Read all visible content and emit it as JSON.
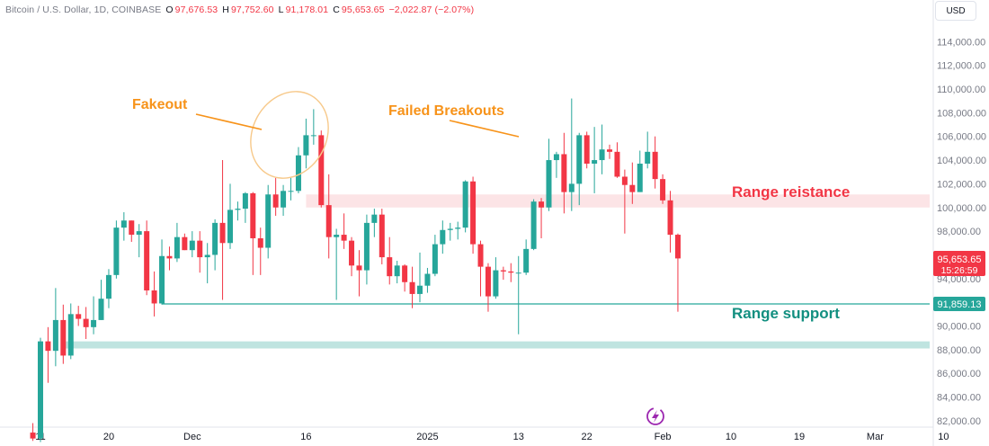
{
  "header": {
    "symbol": "Bitcoin / U.S. Dollar, 1D, COINBASE",
    "o_label": "O",
    "o_value": "97,676.53",
    "h_label": "H",
    "h_value": "97,752.60",
    "l_label": "L",
    "l_value": "91,178.01",
    "c_label": "C",
    "c_value": "95,653.65",
    "change": "−2,022.87 (−2.07%)"
  },
  "currency_button": "USD",
  "price_tag": {
    "price": "95,653.65",
    "countdown": "15:26:59"
  },
  "support_tag": "91,859.13",
  "annotations": {
    "fakeout": "Fakeout",
    "failed_breakouts": "Failed Breakouts",
    "range_resistance": "Range reistance",
    "range_support": "Range support"
  },
  "colors": {
    "up": "#26a69a",
    "down": "#f23645",
    "orange": "#f7931a",
    "resistance_zone": "#fce4e6",
    "support_zone": "#bfe4e0",
    "support_line": "#26a69a"
  },
  "chart_data": {
    "type": "candlestick",
    "y_axis": {
      "min": 80500,
      "max": 115000,
      "ticks": [
        82000,
        84000,
        86000,
        88000,
        90000,
        92000,
        94000,
        96000,
        98000,
        100000,
        102000,
        104000,
        106000,
        108000,
        110000,
        112000,
        114000
      ],
      "tick_labels": [
        "82,000.00",
        "84,000.00",
        "86,000.00",
        "88,000.00",
        "90,000.00",
        "92,000.00",
        "94,000.00",
        "96,000.00",
        "98,000.00",
        "100,000.00",
        "102,000.00",
        "104,000.00",
        "106,000.00",
        "108,000.00",
        "110,000.00",
        "112,000.00",
        "114,000.00"
      ]
    },
    "x_axis": {
      "ticks": [
        {
          "label": "11",
          "date": "2024-11-11"
        },
        {
          "label": "20",
          "date": "2024-11-20"
        },
        {
          "label": "Dec",
          "date": "2024-12-01"
        },
        {
          "label": "16",
          "date": "2024-12-16"
        },
        {
          "label": "2025",
          "date": "2025-01-01"
        },
        {
          "label": "13",
          "date": "2025-01-13"
        },
        {
          "label": "22",
          "date": "2025-01-22"
        },
        {
          "label": "Feb",
          "date": "2025-02-01"
        },
        {
          "label": "10",
          "date": "2025-02-10"
        },
        {
          "label": "19",
          "date": "2025-02-19"
        },
        {
          "label": "Mar",
          "date": "2025-03-01"
        },
        {
          "label": "10",
          "date": "2025-03-10"
        }
      ]
    },
    "candles": [
      {
        "date": "2024-11-10",
        "o": 81000,
        "h": 81800,
        "l": 80300,
        "c": 80500
      },
      {
        "date": "2024-11-11",
        "o": 80500,
        "h": 89000,
        "l": 80200,
        "c": 88700
      },
      {
        "date": "2024-11-12",
        "o": 88700,
        "h": 89900,
        "l": 85200,
        "c": 87900
      },
      {
        "date": "2024-11-13",
        "o": 87900,
        "h": 93200,
        "l": 86600,
        "c": 90500
      },
      {
        "date": "2024-11-14",
        "o": 90500,
        "h": 91800,
        "l": 86800,
        "c": 87500
      },
      {
        "date": "2024-11-15",
        "o": 87500,
        "h": 91900,
        "l": 87200,
        "c": 91000
      },
      {
        "date": "2024-11-16",
        "o": 91000,
        "h": 91700,
        "l": 90000,
        "c": 90600
      },
      {
        "date": "2024-11-17",
        "o": 90600,
        "h": 91600,
        "l": 88900,
        "c": 89900
      },
      {
        "date": "2024-11-18",
        "o": 89900,
        "h": 92500,
        "l": 89300,
        "c": 90500
      },
      {
        "date": "2024-11-19",
        "o": 90500,
        "h": 93900,
        "l": 90500,
        "c": 92300
      },
      {
        "date": "2024-11-20",
        "o": 92300,
        "h": 94800,
        "l": 91500,
        "c": 94300
      },
      {
        "date": "2024-11-21",
        "o": 94300,
        "h": 98900,
        "l": 94000,
        "c": 98300
      },
      {
        "date": "2024-11-22",
        "o": 98300,
        "h": 99600,
        "l": 97200,
        "c": 98900
      },
      {
        "date": "2024-11-23",
        "o": 98900,
        "h": 98900,
        "l": 97100,
        "c": 97700
      },
      {
        "date": "2024-11-24",
        "o": 97700,
        "h": 98600,
        "l": 95800,
        "c": 98000
      },
      {
        "date": "2024-11-25",
        "o": 98000,
        "h": 98900,
        "l": 92600,
        "c": 93000
      },
      {
        "date": "2024-11-26",
        "o": 93000,
        "h": 94600,
        "l": 90800,
        "c": 91900
      },
      {
        "date": "2024-11-27",
        "o": 91900,
        "h": 97300,
        "l": 91800,
        "c": 95900
      },
      {
        "date": "2024-11-28",
        "o": 95900,
        "h": 96700,
        "l": 94700,
        "c": 95700
      },
      {
        "date": "2024-11-29",
        "o": 95700,
        "h": 98700,
        "l": 95400,
        "c": 97500
      },
      {
        "date": "2024-11-30",
        "o": 97500,
        "h": 97800,
        "l": 96400,
        "c": 96400
      },
      {
        "date": "2024-12-01",
        "o": 96400,
        "h": 98000,
        "l": 95800,
        "c": 97200
      },
      {
        "date": "2024-12-02",
        "o": 97200,
        "h": 98000,
        "l": 94500,
        "c": 95800
      },
      {
        "date": "2024-12-03",
        "o": 95800,
        "h": 97000,
        "l": 93600,
        "c": 96000
      },
      {
        "date": "2024-12-04",
        "o": 96000,
        "h": 99000,
        "l": 94700,
        "c": 98700
      },
      {
        "date": "2024-12-05",
        "o": 98700,
        "h": 104000,
        "l": 92200,
        "c": 97000
      },
      {
        "date": "2024-12-06",
        "o": 97000,
        "h": 102000,
        "l": 96500,
        "c": 99800
      },
      {
        "date": "2024-12-07",
        "o": 99800,
        "h": 100500,
        "l": 98900,
        "c": 99900
      },
      {
        "date": "2024-12-08",
        "o": 99900,
        "h": 101300,
        "l": 98700,
        "c": 101200
      },
      {
        "date": "2024-12-09",
        "o": 101200,
        "h": 101300,
        "l": 94300,
        "c": 97400
      },
      {
        "date": "2024-12-10",
        "o": 97400,
        "h": 98300,
        "l": 94300,
        "c": 96600
      },
      {
        "date": "2024-12-11",
        "o": 96600,
        "h": 101900,
        "l": 95700,
        "c": 101100
      },
      {
        "date": "2024-12-12",
        "o": 101100,
        "h": 102500,
        "l": 99300,
        "c": 100000
      },
      {
        "date": "2024-12-13",
        "o": 100000,
        "h": 101900,
        "l": 99300,
        "c": 101400
      },
      {
        "date": "2024-12-14",
        "o": 101400,
        "h": 102600,
        "l": 100600,
        "c": 101400
      },
      {
        "date": "2024-12-15",
        "o": 101400,
        "h": 105100,
        "l": 101200,
        "c": 104400
      },
      {
        "date": "2024-12-16",
        "o": 104400,
        "h": 107500,
        "l": 103300,
        "c": 106100
      },
      {
        "date": "2024-12-17",
        "o": 106100,
        "h": 108300,
        "l": 105300,
        "c": 106100
      },
      {
        "date": "2024-12-18",
        "o": 106100,
        "h": 106500,
        "l": 100000,
        "c": 100200
      },
      {
        "date": "2024-12-19",
        "o": 100200,
        "h": 102800,
        "l": 95700,
        "c": 97500
      },
      {
        "date": "2024-12-20",
        "o": 97500,
        "h": 98200,
        "l": 92200,
        "c": 97700
      },
      {
        "date": "2024-12-21",
        "o": 97700,
        "h": 99500,
        "l": 96500,
        "c": 97200
      },
      {
        "date": "2024-12-22",
        "o": 97200,
        "h": 97500,
        "l": 94200,
        "c": 95100
      },
      {
        "date": "2024-12-23",
        "o": 95100,
        "h": 96400,
        "l": 92500,
        "c": 94700
      },
      {
        "date": "2024-12-24",
        "o": 94700,
        "h": 99400,
        "l": 93500,
        "c": 98700
      },
      {
        "date": "2024-12-25",
        "o": 98700,
        "h": 99900,
        "l": 97500,
        "c": 99400
      },
      {
        "date": "2024-12-26",
        "o": 99400,
        "h": 99900,
        "l": 95200,
        "c": 95800
      },
      {
        "date": "2024-12-27",
        "o": 95800,
        "h": 97500,
        "l": 93500,
        "c": 94200
      },
      {
        "date": "2024-12-28",
        "o": 94200,
        "h": 95500,
        "l": 93600,
        "c": 95100
      },
      {
        "date": "2024-12-29",
        "o": 95100,
        "h": 95200,
        "l": 92900,
        "c": 93700
      },
      {
        "date": "2024-12-30",
        "o": 93700,
        "h": 95000,
        "l": 91500,
        "c": 92700
      },
      {
        "date": "2024-12-31",
        "o": 92700,
        "h": 96200,
        "l": 92000,
        "c": 93400
      },
      {
        "date": "2025-01-01",
        "o": 93400,
        "h": 94900,
        "l": 92800,
        "c": 94400
      },
      {
        "date": "2025-01-02",
        "o": 94400,
        "h": 97700,
        "l": 94200,
        "c": 96900
      },
      {
        "date": "2025-01-03",
        "o": 96900,
        "h": 98900,
        "l": 96100,
        "c": 98100
      },
      {
        "date": "2025-01-04",
        "o": 98100,
        "h": 98700,
        "l": 97200,
        "c": 98200
      },
      {
        "date": "2025-01-05",
        "o": 98200,
        "h": 98800,
        "l": 97300,
        "c": 98300
      },
      {
        "date": "2025-01-06",
        "o": 98300,
        "h": 102300,
        "l": 97900,
        "c": 102200
      },
      {
        "date": "2025-01-07",
        "o": 102200,
        "h": 102600,
        "l": 96100,
        "c": 96900
      },
      {
        "date": "2025-01-08",
        "o": 96900,
        "h": 97200,
        "l": 92500,
        "c": 95000
      },
      {
        "date": "2025-01-09",
        "o": 95000,
        "h": 95300,
        "l": 91200,
        "c": 92500
      },
      {
        "date": "2025-01-10",
        "o": 92500,
        "h": 95800,
        "l": 92300,
        "c": 94700
      },
      {
        "date": "2025-01-11",
        "o": 94700,
        "h": 95000,
        "l": 93900,
        "c": 94600
      },
      {
        "date": "2025-01-12",
        "o": 94600,
        "h": 95300,
        "l": 93700,
        "c": 94500
      },
      {
        "date": "2025-01-13",
        "o": 94500,
        "h": 95900,
        "l": 89300,
        "c": 94500
      },
      {
        "date": "2025-01-14",
        "o": 94500,
        "h": 97300,
        "l": 94300,
        "c": 96500
      },
      {
        "date": "2025-01-15",
        "o": 96500,
        "h": 100700,
        "l": 96400,
        "c": 100500
      },
      {
        "date": "2025-01-16",
        "o": 100500,
        "h": 100800,
        "l": 97400,
        "c": 100000
      },
      {
        "date": "2025-01-17",
        "o": 100000,
        "h": 105800,
        "l": 99700,
        "c": 104000
      },
      {
        "date": "2025-01-18",
        "o": 104000,
        "h": 104700,
        "l": 102500,
        "c": 104500
      },
      {
        "date": "2025-01-19",
        "o": 104500,
        "h": 106300,
        "l": 99500,
        "c": 101300
      },
      {
        "date": "2025-01-20",
        "o": 101300,
        "h": 109200,
        "l": 99700,
        "c": 102000
      },
      {
        "date": "2025-01-21",
        "o": 102000,
        "h": 106300,
        "l": 100200,
        "c": 106100
      },
      {
        "date": "2025-01-22",
        "o": 106100,
        "h": 106400,
        "l": 103300,
        "c": 103700
      },
      {
        "date": "2025-01-23",
        "o": 103700,
        "h": 106800,
        "l": 101200,
        "c": 104000
      },
      {
        "date": "2025-01-24",
        "o": 104000,
        "h": 107000,
        "l": 102800,
        "c": 104900
      },
      {
        "date": "2025-01-25",
        "o": 104900,
        "h": 105300,
        "l": 104100,
        "c": 104700
      },
      {
        "date": "2025-01-26",
        "o": 104700,
        "h": 105500,
        "l": 102500,
        "c": 102600
      },
      {
        "date": "2025-01-27",
        "o": 102600,
        "h": 103200,
        "l": 97800,
        "c": 101900
      },
      {
        "date": "2025-01-28",
        "o": 101900,
        "h": 103800,
        "l": 100300,
        "c": 101300
      },
      {
        "date": "2025-01-29",
        "o": 101300,
        "h": 104800,
        "l": 101300,
        "c": 103700
      },
      {
        "date": "2025-01-30",
        "o": 103700,
        "h": 106400,
        "l": 103300,
        "c": 104700
      },
      {
        "date": "2025-01-31",
        "o": 104700,
        "h": 106000,
        "l": 101600,
        "c": 102400
      },
      {
        "date": "2025-02-01",
        "o": 102400,
        "h": 102800,
        "l": 100300,
        "c": 100600
      },
      {
        "date": "2025-02-02",
        "o": 100600,
        "h": 101400,
        "l": 96200,
        "c": 97700
      },
      {
        "date": "2025-02-03",
        "o": 97700,
        "h": 97800,
        "l": 91200,
        "c": 95700
      }
    ],
    "horizontal_levels": [
      {
        "label": "Range reistance",
        "from": 100000,
        "to": 101100
      },
      {
        "label": "Range support",
        "value": 91859.13
      },
      {
        "label": "Range support",
        "from": 88100,
        "to": 88700
      }
    ]
  }
}
